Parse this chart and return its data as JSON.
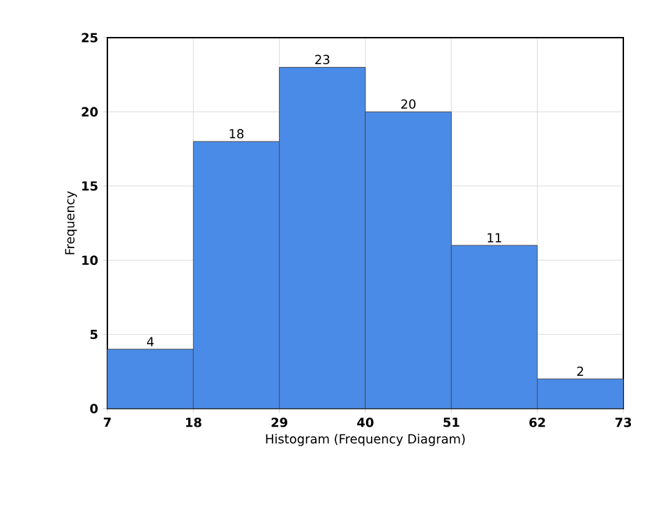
{
  "chart_data": {
    "type": "histogram",
    "xlabel": "Histogram (Frequency Diagram)",
    "ylabel": "Frequency",
    "bins": [
      7,
      18,
      29,
      40,
      51,
      62,
      73
    ],
    "values": [
      4,
      18,
      23,
      20,
      11,
      2
    ],
    "color": "#4a8be8",
    "xlim": [
      7,
      73
    ],
    "ylim": [
      0,
      25
    ],
    "xticks": [
      7,
      18,
      29,
      40,
      51,
      62,
      73
    ],
    "yticks": [
      0,
      5,
      10,
      15,
      20,
      25
    ],
    "grid": true,
    "data_labels": true
  }
}
